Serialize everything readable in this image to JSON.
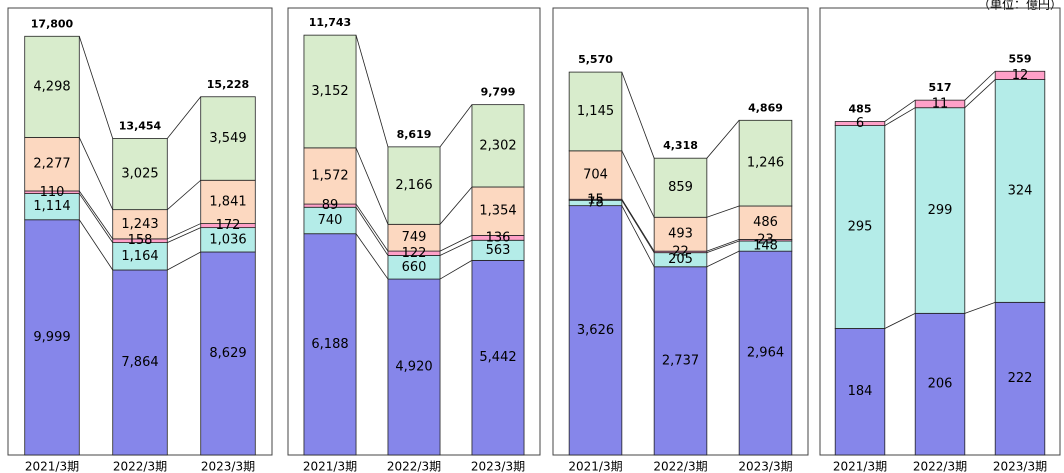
{
  "unit": "（単位：億円）",
  "chart_data": [
    {
      "type": "bar",
      "stacked": true,
      "categories": [
        "2021/3期",
        "2022/3期",
        "2023/3期"
      ],
      "ylim": [
        0,
        19000
      ],
      "series": [
        {
          "color": "#8686ea",
          "values": [
            9999,
            7864,
            8629
          ],
          "value_labels": [
            "9,999",
            "7,864",
            "8,629"
          ]
        },
        {
          "color": "#b4ece8",
          "values": [
            1114,
            1164,
            1036
          ],
          "value_labels": [
            "1,114",
            "1,164",
            "1,036"
          ]
        },
        {
          "color": "#ffa0c8",
          "values": [
            110,
            158,
            172
          ]
        },
        {
          "color": "#fcd8c0",
          "values": [
            2277,
            1243,
            1841
          ],
          "value_labels": [
            "2,277",
            "1,243",
            "1,841"
          ]
        },
        {
          "color": "#d8eccc",
          "values": [
            4298,
            3025,
            3549
          ],
          "value_labels": [
            "4,298",
            "3,025",
            "3,549"
          ]
        }
      ],
      "totals": [
        17800,
        13454,
        15228
      ],
      "total_labels": [
        "17,800",
        "13,454",
        "15,228"
      ]
    },
    {
      "type": "bar",
      "stacked": true,
      "categories": [
        "2021/3期",
        "2022/3期",
        "2023/3期"
      ],
      "ylim": [
        0,
        12500
      ],
      "series": [
        {
          "color": "#8686ea",
          "values": [
            6188,
            4920,
            5442
          ],
          "value_labels": [
            "6,188",
            "4,920",
            "5,442"
          ]
        },
        {
          "color": "#b4ece8",
          "values": [
            740,
            660,
            563
          ]
        },
        {
          "color": "#ffa0c8",
          "values": [
            89,
            122,
            136
          ]
        },
        {
          "color": "#fcd8c0",
          "values": [
            1572,
            749,
            1354
          ],
          "value_labels": [
            "1,572",
            "749",
            "1,354"
          ]
        },
        {
          "color": "#d8eccc",
          "values": [
            3152,
            2166,
            2302
          ],
          "value_labels": [
            "3,152",
            "2,166",
            "2,302"
          ]
        }
      ],
      "totals": [
        11743,
        8619,
        9799
      ],
      "total_labels": [
        "11,743",
        "8,619",
        "9,799"
      ]
    },
    {
      "type": "bar",
      "stacked": true,
      "categories": [
        "2021/3期",
        "2022/3期",
        "2023/3期"
      ],
      "ylim": [
        0,
        6500
      ],
      "series": [
        {
          "color": "#8686ea",
          "values": [
            3626,
            2737,
            2964
          ],
          "value_labels": [
            "3,626",
            "2,737",
            "2,964"
          ]
        },
        {
          "color": "#b4ece8",
          "values": [
            78,
            205,
            148
          ]
        },
        {
          "color": "#ffa0c8",
          "values": [
            15,
            22,
            23
          ]
        },
        {
          "color": "#fcd8c0",
          "values": [
            704,
            493,
            486
          ]
        },
        {
          "color": "#d8eccc",
          "values": [
            1145,
            859,
            1246
          ],
          "value_labels": [
            "1,145",
            "859",
            "1,246"
          ]
        }
      ],
      "totals": [
        5570,
        4318,
        4869
      ],
      "total_labels": [
        "5,570",
        "4,318",
        "4,869"
      ]
    },
    {
      "type": "bar",
      "stacked": true,
      "categories": [
        "2021/3期",
        "2022/3期",
        "2023/3期"
      ],
      "ylim": [
        0,
        650
      ],
      "series": [
        {
          "color": "#8686ea",
          "values": [
            184,
            206,
            222
          ]
        },
        {
          "color": "#b4ece8",
          "values": [
            295,
            299,
            324
          ]
        },
        {
          "color": "#ffa0c8",
          "values": [
            6,
            11,
            12
          ]
        }
      ],
      "totals": [
        485,
        517,
        559
      ]
    }
  ]
}
